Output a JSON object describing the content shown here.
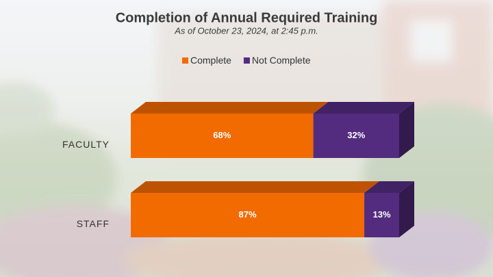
{
  "chart_data": {
    "type": "stacked-bar-3d",
    "title": "Completion of Annual Required Training",
    "subtitle": "As of October 23, 2024, at 2:45 p.m.",
    "categories": [
      "FACULTY",
      "STAFF"
    ],
    "series": [
      {
        "name": "Complete",
        "color": "#f26b00",
        "values": [
          68,
          87
        ],
        "value_labels": [
          "68%",
          "87%"
        ]
      },
      {
        "name": "Not Complete",
        "color": "#532c80",
        "values": [
          32,
          13
        ],
        "value_labels": [
          "32%",
          "13%"
        ]
      }
    ],
    "legend": "top"
  }
}
